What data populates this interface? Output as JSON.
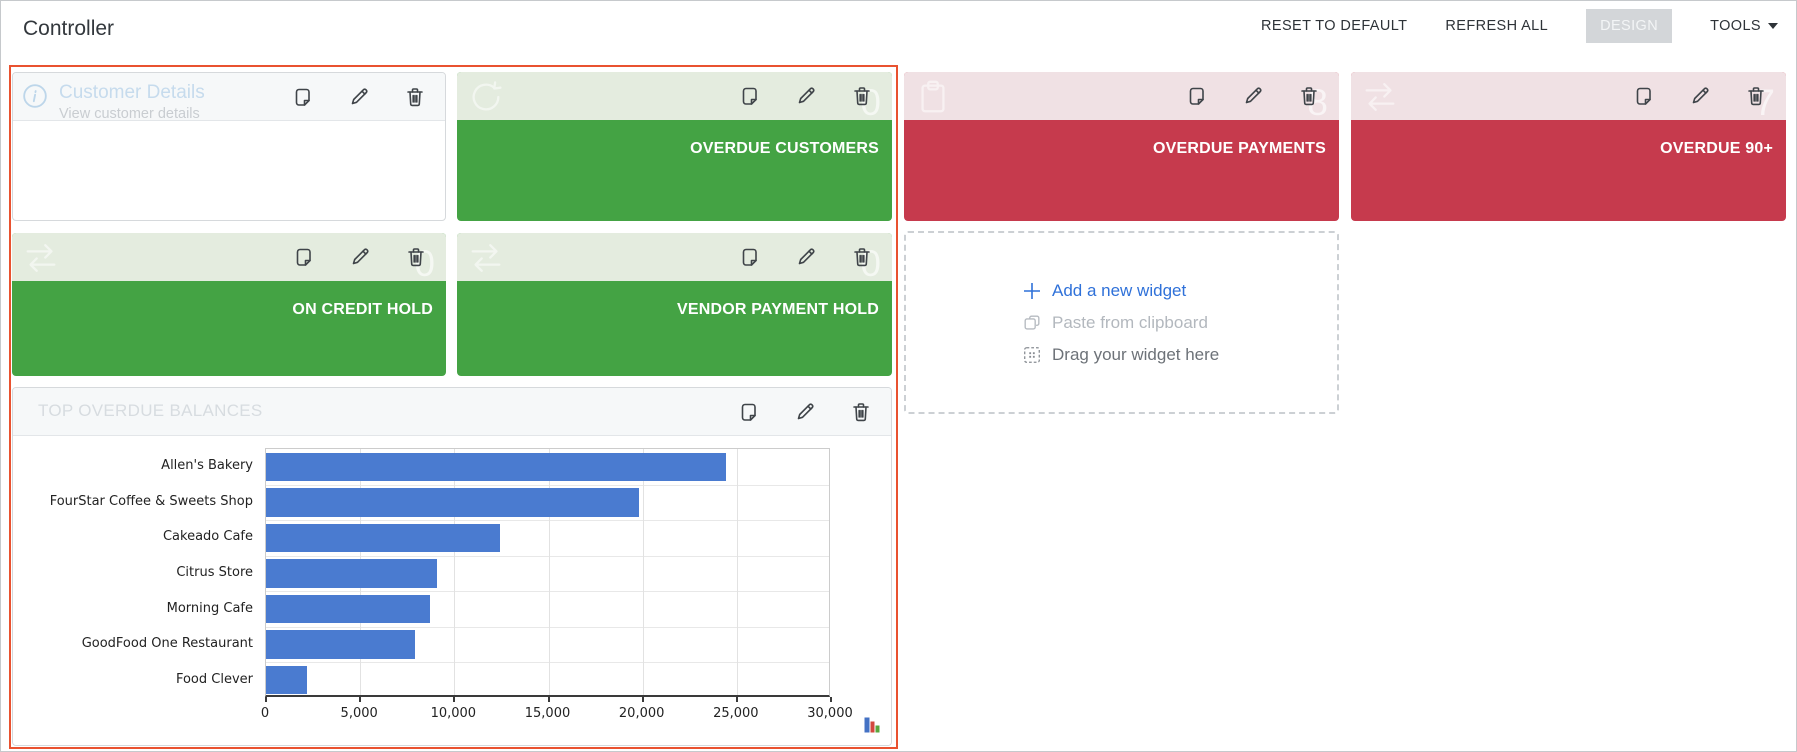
{
  "page": {
    "title": "Controller"
  },
  "toolbar": {
    "reset_label": "RESET TO DEFAULT",
    "refresh_label": "REFRESH ALL",
    "design_label": "DESIGN",
    "tools_label": "TOOLS"
  },
  "widgets": {
    "customer_details": {
      "title": "Customer Details",
      "subtitle": "View customer details"
    },
    "overdue_customers": {
      "caption": "OVERDUE CUSTOMERS",
      "value": "0"
    },
    "overdue_payments": {
      "caption": "OVERDUE PAYMENTS",
      "value": "8"
    },
    "overdue_90": {
      "caption": "OVERDUE 90+",
      "value": "7"
    },
    "on_credit_hold": {
      "caption": "ON CREDIT HOLD",
      "value": "0"
    },
    "vendor_payment_hold": {
      "caption": "VENDOR PAYMENT HOLD",
      "value": "0"
    }
  },
  "add_widget": {
    "add_label": "Add a new widget",
    "paste_label": "Paste from clipboard",
    "drag_label": "Drag your widget here"
  },
  "chart_widget": {
    "title": "TOP OVERDUE BALANCES"
  },
  "chart_data": {
    "type": "bar",
    "orientation": "horizontal",
    "title": "TOP OVERDUE BALANCES",
    "categories": [
      "Allen's Bakery",
      "FourStar Coffee & Sweets Shop",
      "Cakeado Cafe",
      "Citrus Store",
      "Morning Cafe",
      "GoodFood One Restaurant",
      "Food Clever"
    ],
    "values": [
      24400,
      19800,
      12400,
      9100,
      8700,
      7900,
      2200
    ],
    "xlim": [
      0,
      30000
    ],
    "xticks": [
      0,
      5000,
      10000,
      15000,
      20000,
      25000,
      30000
    ],
    "xtick_labels": [
      "0",
      "5,000",
      "10,000",
      "15,000",
      "20,000",
      "25,000",
      "30,000"
    ],
    "xlabel": "",
    "ylabel": "",
    "grid": true,
    "legend": "none",
    "bar_color": "#4a7bd0"
  },
  "colors": {
    "green": "#44a344",
    "red": "#c63a4d",
    "selection_border": "#e95230",
    "bar_blue": "#4a7bd0",
    "design_btn_bg": "#d3d6d9",
    "link_blue": "#2f71d9"
  }
}
